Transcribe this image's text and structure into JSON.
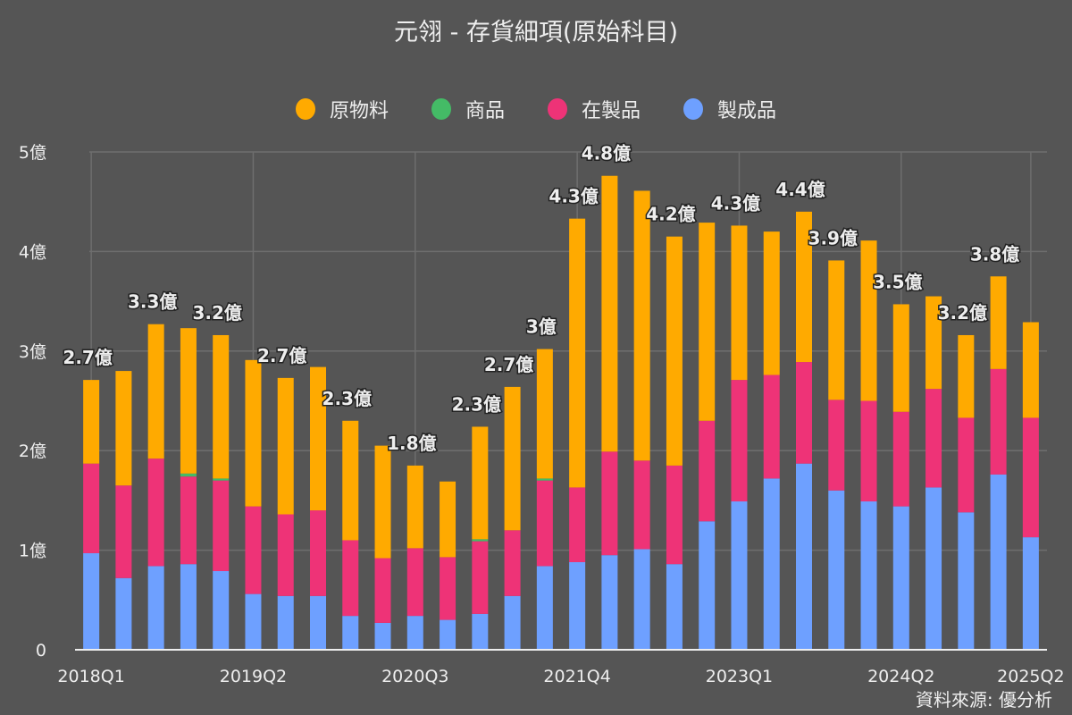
{
  "chart_data": {
    "type": "bar",
    "stacked": true,
    "title": "元翎 - 存貨細項(原始科目)",
    "xlabel": "",
    "ylabel": "",
    "ylim": [
      0,
      5
    ],
    "unit": "億",
    "grid": true,
    "legend_position": "top-center",
    "y_ticks": [
      "0",
      "1億",
      "2億",
      "3億",
      "4億",
      "5億"
    ],
    "y_tick_values": [
      0,
      1,
      2,
      3,
      4,
      5
    ],
    "x_tick_labels": [
      "2018Q1",
      "2019Q2",
      "2020Q3",
      "2021Q4",
      "2023Q1",
      "2024Q2",
      "2025Q2"
    ],
    "categories": [
      "2018Q1",
      "2018Q2",
      "2018Q3",
      "2018Q4",
      "2019Q1",
      "2019Q2",
      "2019Q3",
      "2019Q4",
      "2020Q1",
      "2020Q2",
      "2020Q3",
      "2020Q4",
      "2021Q1",
      "2021Q2",
      "2021Q3",
      "2021Q4",
      "2022Q1",
      "2022Q2",
      "2022Q3",
      "2022Q4",
      "2023Q1",
      "2023Q2",
      "2023Q3",
      "2023Q4",
      "2024Q1",
      "2024Q2",
      "2024Q3",
      "2024Q4",
      "2025Q1",
      "2025Q2"
    ],
    "series": [
      {
        "name": "製成品",
        "color": "#6ea0ff",
        "values": [
          0.97,
          0.72,
          0.84,
          0.86,
          0.79,
          0.56,
          0.54,
          0.54,
          0.34,
          0.27,
          0.34,
          0.3,
          0.36,
          0.54,
          0.84,
          0.88,
          0.95,
          1.01,
          0.86,
          1.29,
          1.49,
          1.72,
          1.87,
          1.6,
          1.49,
          1.44,
          1.63,
          1.38,
          1.76,
          1.13
        ]
      },
      {
        "name": "在製品",
        "color": "#ee3377",
        "values": [
          0.9,
          0.93,
          1.08,
          0.88,
          0.91,
          0.88,
          0.82,
          0.86,
          0.76,
          0.65,
          0.68,
          0.63,
          0.73,
          0.66,
          0.86,
          0.75,
          1.04,
          0.89,
          0.99,
          1.01,
          1.22,
          1.04,
          1.02,
          0.91,
          1.01,
          0.95,
          0.99,
          0.95,
          1.06,
          1.2
        ]
      },
      {
        "name": "商品",
        "color": "#44bb66",
        "values": [
          0,
          0,
          0,
          0.03,
          0.02,
          0,
          0,
          0,
          0,
          0,
          0,
          0,
          0.02,
          0,
          0.02,
          0,
          0,
          0,
          0,
          0,
          0,
          0,
          0,
          0,
          0,
          0,
          0,
          0,
          0,
          0
        ]
      },
      {
        "name": "原物料",
        "color": "#ffaa00",
        "values": [
          0.84,
          1.15,
          1.35,
          1.46,
          1.44,
          1.47,
          1.37,
          1.44,
          1.2,
          1.13,
          0.83,
          0.76,
          1.13,
          1.44,
          1.3,
          2.7,
          2.77,
          2.71,
          2.3,
          1.99,
          1.55,
          1.44,
          1.51,
          1.4,
          1.61,
          1.08,
          0.93,
          0.83,
          0.93,
          0.96
        ]
      }
    ],
    "data_labels": [
      {
        "category": "2018Q1",
        "text": "2.7億"
      },
      {
        "category": "2018Q3",
        "text": "3.3億"
      },
      {
        "category": "2019Q1",
        "text": "3.2億"
      },
      {
        "category": "2019Q3",
        "text": "2.7億"
      },
      {
        "category": "2020Q1",
        "text": "2.3億"
      },
      {
        "category": "2020Q3",
        "text": "1.8億"
      },
      {
        "category": "2021Q1",
        "text": "2.3億"
      },
      {
        "category": "2021Q2",
        "text": "2.7億"
      },
      {
        "category": "2021Q3",
        "text": "3億"
      },
      {
        "category": "2021Q4",
        "text": "4.3億"
      },
      {
        "category": "2022Q1",
        "text": "4.8億"
      },
      {
        "category": "2022Q3",
        "text": "4.2億"
      },
      {
        "category": "2023Q1",
        "text": "4.3億"
      },
      {
        "category": "2023Q3",
        "text": "4.4億"
      },
      {
        "category": "2023Q4",
        "text": "3.9億"
      },
      {
        "category": "2024Q2",
        "text": "3.5億"
      },
      {
        "category": "2024Q4",
        "text": "3.2億"
      },
      {
        "category": "2025Q1",
        "text": "3.8億"
      }
    ]
  },
  "legend": [
    {
      "label": "原物料",
      "color": "#ffaa00"
    },
    {
      "label": "商品",
      "color": "#44bb66"
    },
    {
      "label": "在製品",
      "color": "#ee3377"
    },
    {
      "label": "製成品",
      "color": "#6ea0ff"
    }
  ],
  "source": "資料來源: 優分析"
}
